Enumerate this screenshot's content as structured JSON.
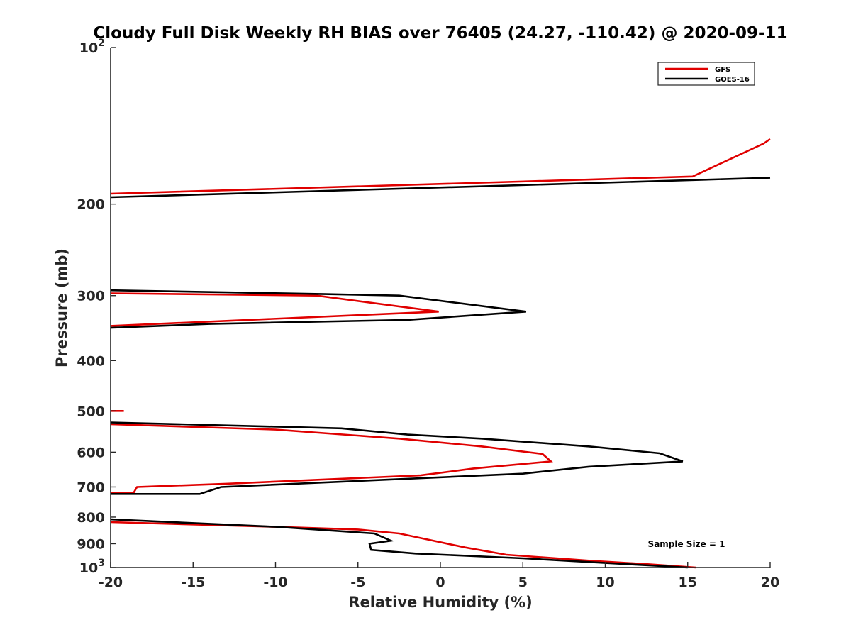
{
  "chart_data": {
    "type": "line",
    "title": "Cloudy Full Disk Weekly RH BIAS over 76405 (24.27, -110.42) @ 2020-09-11",
    "xlabel": "Relative Humidity (%)",
    "ylabel": "Pressure (mb)",
    "xlim": [
      -20,
      20
    ],
    "ylim": [
      100,
      1000
    ],
    "yscale": "log",
    "y_reversed": true,
    "x_ticks": [
      "-20",
      "-15",
      "-10",
      "-5",
      "0",
      "5",
      "10",
      "15",
      "20"
    ],
    "y_ticks": [
      {
        "value": 100,
        "base": "10",
        "exp": "2"
      },
      {
        "value": 200,
        "label": "200"
      },
      {
        "value": 300,
        "label": "300"
      },
      {
        "value": 400,
        "label": "400"
      },
      {
        "value": 500,
        "label": "500"
      },
      {
        "value": 600,
        "label": "600"
      },
      {
        "value": 700,
        "label": "700"
      },
      {
        "value": 800,
        "label": "800"
      },
      {
        "value": 900,
        "label": "900"
      },
      {
        "value": 1000,
        "base": "10",
        "exp": "3"
      }
    ],
    "legend_position": "top-right",
    "annotation": "Sample Size = 1",
    "series": [
      {
        "name": "GFS",
        "color": "#e00000",
        "segments": [
          [
            [
              20,
              150
            ],
            [
              19.6,
              153
            ],
            [
              15.3,
              177
            ],
            [
              -20,
              191
            ]
          ],
          [
            [
              -20,
              297
            ],
            [
              -7.5,
              300
            ],
            [
              -0.1,
              322
            ],
            [
              -20,
              343
            ]
          ],
          [
            [
              -20,
              500
            ],
            [
              -19.2,
              500
            ]
          ],
          [
            [
              -20,
              530
            ],
            [
              -10,
              543
            ],
            [
              -2.5,
              565
            ],
            [
              2.5,
              585
            ],
            [
              6.2,
              605
            ],
            [
              6.7,
              625
            ],
            [
              2.0,
              645
            ],
            [
              -1.2,
              665
            ],
            [
              -13,
              690
            ],
            [
              -18.4,
              700
            ],
            [
              -18.6,
              718
            ],
            [
              -20,
              718
            ]
          ],
          [
            [
              -20,
              818
            ],
            [
              -10,
              835
            ],
            [
              -5,
              845
            ],
            [
              -2.5,
              860
            ],
            [
              1.5,
              915
            ],
            [
              4.0,
              945
            ],
            [
              9.0,
              970
            ],
            [
              12.5,
              985
            ],
            [
              15.5,
              1000
            ]
          ]
        ]
      },
      {
        "name": "GOES-16",
        "color": "#000000",
        "segments": [
          [
            [
              20,
              178
            ],
            [
              -20,
              194
            ]
          ],
          [
            [
              -20,
              293
            ],
            [
              -7.0,
              298
            ],
            [
              -2.5,
              300
            ],
            [
              5.2,
              322
            ],
            [
              -2.0,
              334
            ],
            [
              -14,
              340
            ],
            [
              -20,
              346
            ]
          ],
          [
            [
              -20,
              526
            ],
            [
              -6.0,
              540
            ],
            [
              -2.0,
              555
            ],
            [
              2.5,
              565
            ],
            [
              9.0,
              585
            ],
            [
              13.3,
              603
            ],
            [
              14.7,
              625
            ],
            [
              9.0,
              640
            ],
            [
              5.0,
              660
            ],
            [
              -13.3,
              700
            ],
            [
              -14.6,
              722
            ],
            [
              -20,
              722
            ]
          ],
          [
            [
              -20,
              808
            ],
            [
              -10,
              835
            ],
            [
              -4.0,
              860
            ],
            [
              -3.0,
              888
            ],
            [
              -4.3,
              900
            ],
            [
              -4.2,
              925
            ],
            [
              -1.5,
              940
            ],
            [
              5.0,
              960
            ],
            [
              10.0,
              980
            ],
            [
              15.0,
              1000
            ]
          ]
        ]
      }
    ]
  }
}
